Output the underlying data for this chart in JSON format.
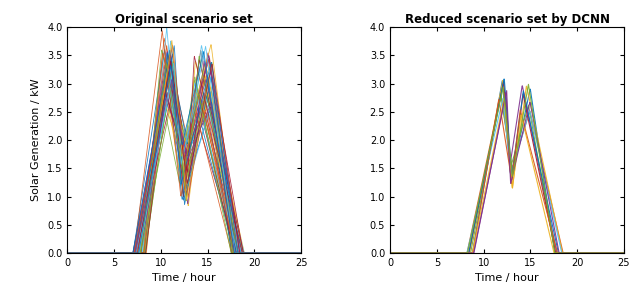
{
  "title_left": "Original scenario set",
  "title_right": "Reduced scenario set by DCNN",
  "xlabel": "Time / hour",
  "ylabel": "Solar Generation / kW",
  "xlim": [
    0,
    25
  ],
  "ylim": [
    0,
    4
  ],
  "xticks": [
    0,
    5,
    10,
    15,
    20,
    25
  ],
  "yticks": [
    0,
    0.5,
    1,
    1.5,
    2,
    2.5,
    3,
    3.5,
    4
  ],
  "n_original": 50,
  "n_reduced": 12,
  "matlab_colors": [
    "#0072BD",
    "#D95319",
    "#EDB120",
    "#7E2F8E",
    "#77AC30",
    "#4DBEEE",
    "#A2142F",
    "#0072BD",
    "#D95319",
    "#EDB120",
    "#7E2F8E",
    "#77AC30",
    "#4DBEEE",
    "#A2142F",
    "#0072BD",
    "#D95319",
    "#EDB120",
    "#7E2F8E",
    "#77AC30",
    "#4DBEEE",
    "#A2142F",
    "#0072BD",
    "#D95319",
    "#EDB120",
    "#7E2F8E",
    "#77AC30",
    "#4DBEEE",
    "#A2142F",
    "#0072BD",
    "#D95319",
    "#EDB120",
    "#7E2F8E",
    "#77AC30",
    "#4DBEEE",
    "#A2142F",
    "#0072BD",
    "#D95319",
    "#EDB120",
    "#7E2F8E",
    "#77AC30",
    "#4DBEEE",
    "#A2142F",
    "#0072BD",
    "#D95319",
    "#EDB120",
    "#7E2F8E",
    "#77AC30",
    "#4DBEEE",
    "#A2142F",
    "#0072BD",
    "#D95319",
    "#EDB120"
  ]
}
